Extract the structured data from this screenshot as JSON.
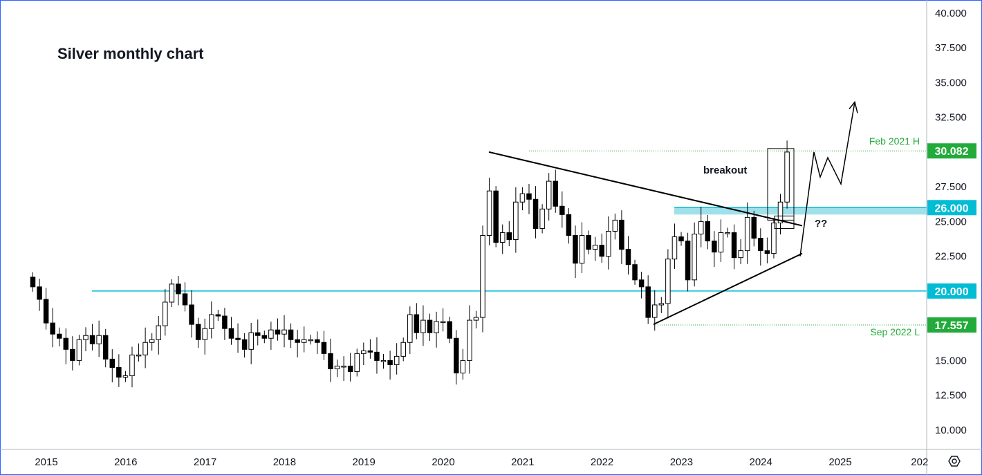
{
  "chart_data": {
    "type": "candlestick",
    "title": "Silver monthly chart",
    "y_ticks": [
      "40.000",
      "37.500",
      "35.000",
      "32.500",
      "30.000",
      "27.500",
      "25.000",
      "22.500",
      "20.000",
      "17.500",
      "15.000",
      "12.500",
      "10.000"
    ],
    "ylim": [
      8.5,
      40.5
    ],
    "x_ticks": [
      "2015",
      "2016",
      "2017",
      "2018",
      "2019",
      "2020",
      "2021",
      "2022",
      "2023",
      "2024",
      "2025",
      "202"
    ],
    "price_badges": [
      {
        "label": "30.082",
        "value": 30.082,
        "color": "#22ab3a"
      },
      {
        "label": "26.000",
        "value": 26.0,
        "color": "#00bcd4"
      },
      {
        "label": "20.000",
        "value": 20.0,
        "color": "#00bcd4"
      },
      {
        "label": "17.557",
        "value": 17.557,
        "color": "#22ab3a"
      }
    ],
    "level_labels": [
      {
        "text": "Feb 2021 H",
        "value": 30.082
      },
      {
        "text": "Sep 2022 L",
        "value": 17.557
      }
    ],
    "annotations": {
      "breakout": "breakout",
      "question": "??"
    },
    "horizontal_levels": [
      20.0,
      26.0
    ],
    "candles": [
      [
        2014.917,
        21.0,
        21.6,
        19.6,
        20.3
      ],
      [
        2015.0,
        20.8,
        21.3,
        19.3,
        20.2
      ],
      [
        2015.083,
        20.2,
        20.4,
        18.8,
        19.4
      ],
      [
        2015.167,
        19.3,
        19.6,
        17.4,
        17.7
      ],
      [
        2015.25,
        17.7,
        18.0,
        16.8,
        16.9
      ],
      [
        2015.333,
        16.9,
        17.5,
        16.1,
        16.5
      ],
      [
        2015.417,
        16.5,
        17.1,
        15.8,
        15.9
      ],
      [
        2015.5,
        15.9,
        16.2,
        14.6,
        14.8
      ],
      [
        2015.583,
        14.8,
        16.0,
        14.5,
        15.7
      ],
      [
        2015.667,
        15.7,
        16.8,
        15.4,
        17.0
      ],
      [
        2015.75,
        16.5,
        17.9,
        16.0,
        17.2
      ],
      [
        2015.833,
        17.2,
        17.4,
        16.2,
        16.2
      ],
      [
        2015.917,
        16.2,
        16.9,
        15.9,
        16.6
      ],
      [
        2015.0833,
        16.6,
        16.9,
        15.6,
        16.0
      ],
      [
        2016.0,
        16.7,
        17.6,
        16.0,
        16.5
      ],
      [
        2015.167,
        16.5,
        17.0,
        15.2,
        15.6
      ]
    ],
    "candle_note": "approximate monthly OHLC estimates"
  }
}
